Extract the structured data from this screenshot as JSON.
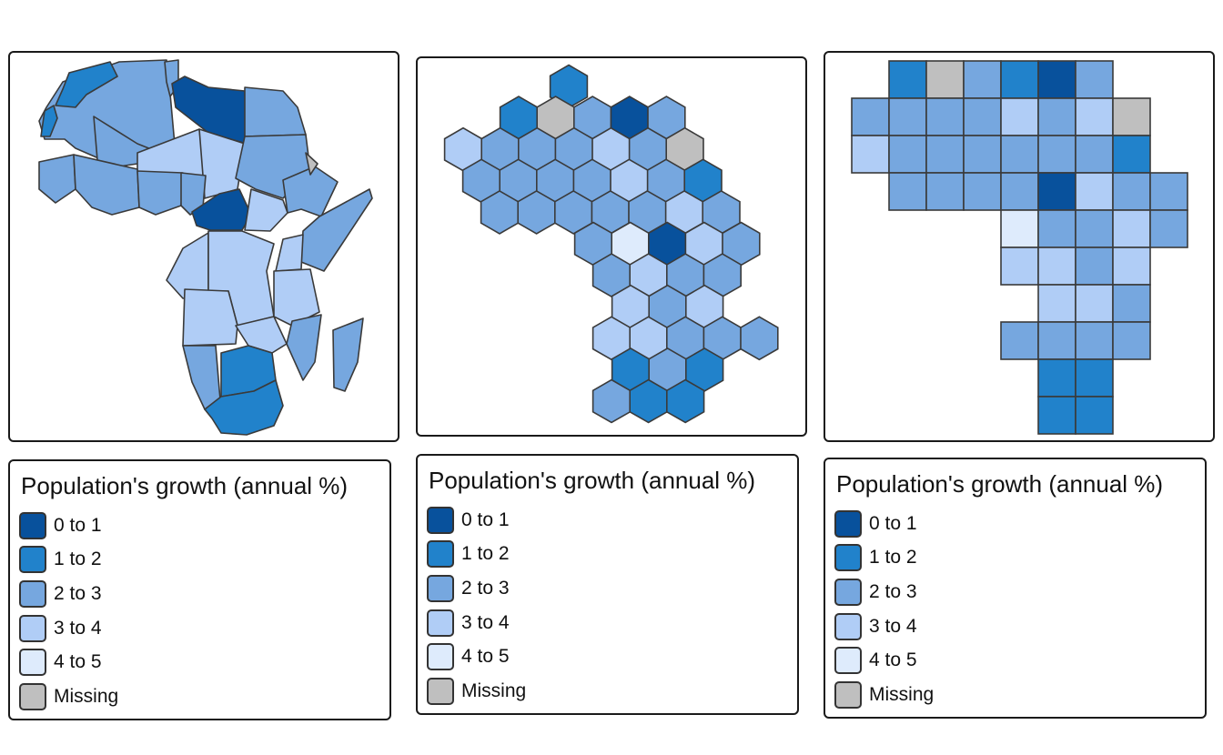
{
  "colors": {
    "c01": "#08519c",
    "c12": "#2182cb",
    "c23": "#76a7df",
    "c34": "#b0cdf6",
    "c45": "#deebfc",
    "missing": "#bfbfbf",
    "stroke": "#3a3a3a"
  },
  "legend": {
    "title": "Population's growth (annual %)",
    "items": [
      {
        "label": "0 to 1",
        "color_key": "c01"
      },
      {
        "label": "1 to 2",
        "color_key": "c12"
      },
      {
        "label": "2 to 3",
        "color_key": "c23"
      },
      {
        "label": "3 to 4",
        "color_key": "c34"
      },
      {
        "label": "4 to 5",
        "color_key": "c45"
      },
      {
        "label": "Missing",
        "color_key": "missing"
      }
    ]
  },
  "hex_map": {
    "rows": [
      [
        "c12"
      ],
      [
        "c12",
        "missing",
        "c23",
        "c01",
        "c23"
      ],
      [
        "c34",
        "c23",
        "c23",
        "c23",
        "c34",
        "c23",
        "missing"
      ],
      [
        "c23",
        "c23",
        "c23",
        "c23",
        "c34",
        "c23",
        "c12"
      ],
      [
        "c23",
        "c23",
        "c23",
        "c23",
        "c23",
        "c34",
        "c23"
      ],
      [
        "c23",
        "c45",
        "c01",
        "c34",
        "c23"
      ],
      [
        "c23",
        "c34",
        "c23",
        "c23"
      ],
      [
        "c34",
        "c23",
        "c34"
      ],
      [
        "c34",
        "c34",
        "c23",
        "c23",
        "c23"
      ],
      [
        "c12",
        "c23",
        "c12"
      ],
      [
        "c23",
        "c12",
        "c12"
      ]
    ]
  },
  "grid_map": {
    "rows": [
      [
        "c12",
        "missing",
        "c23",
        "c12",
        "c01",
        "c23"
      ],
      [
        "c23",
        "c23",
        "c23",
        "c23",
        "c34",
        "c23",
        "c34",
        "missing"
      ],
      [
        "c34",
        "c23",
        "c23",
        "c23",
        "c23",
        "c23",
        "c23",
        "c12"
      ],
      [
        "c23",
        "c23",
        "c23",
        "c23",
        "c01",
        "c34",
        "c23",
        "c23"
      ],
      [
        "c45",
        "c23",
        "c23",
        "c34",
        "c23"
      ],
      [
        "c34",
        "c34",
        "c23",
        "c34"
      ],
      [
        "c34",
        "c34",
        "c23"
      ],
      [
        "c23",
        "c23",
        "c23",
        "c23"
      ],
      [
        "c12",
        "c12"
      ],
      [
        "c12",
        "c12"
      ]
    ]
  }
}
